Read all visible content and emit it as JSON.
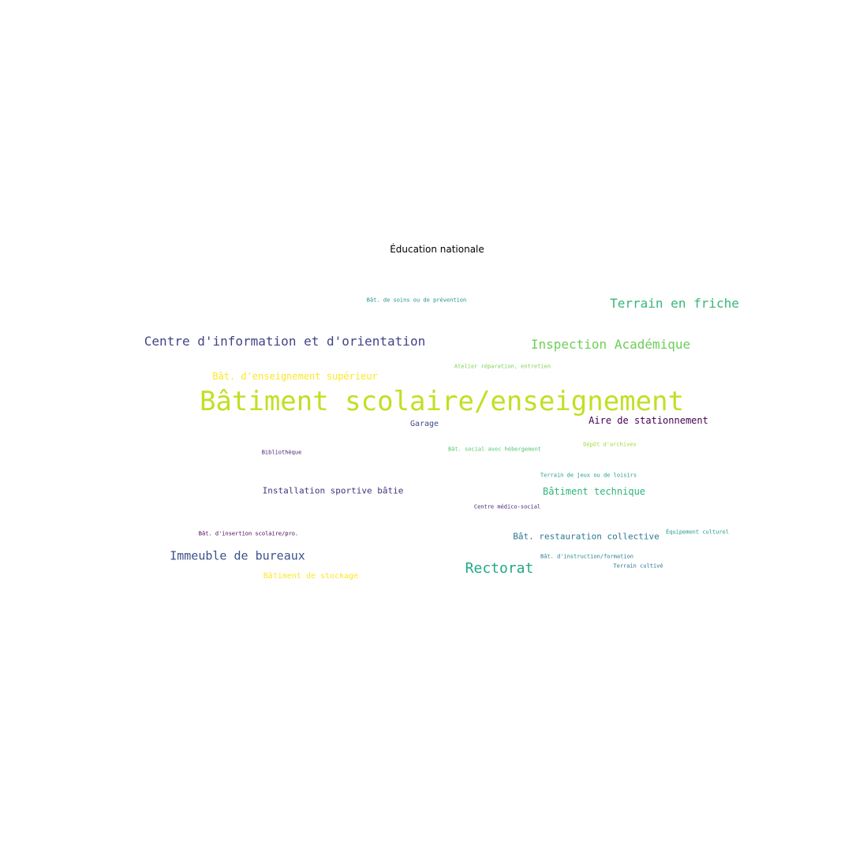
{
  "chart_data": {
    "type": "wordcloud",
    "title": "Éducation nationale",
    "words": [
      {
        "text": "Bâtiment scolaire/enseignement",
        "color": "#c2df23"
      },
      {
        "text": "Centre d'information et d'orientation",
        "color": "#414487"
      },
      {
        "text": "Terrain en friche",
        "color": "#35b779"
      },
      {
        "text": "Inspection Académique",
        "color": "#6ece58"
      },
      {
        "text": "Bât. d'enseignement supérieur",
        "color": "#fde725"
      },
      {
        "text": "Immeuble de bureaux",
        "color": "#3b528b"
      },
      {
        "text": "Rectorat",
        "color": "#22a884"
      },
      {
        "text": "Aire de stationnement",
        "color": "#440154"
      },
      {
        "text": "Bâtiment technique",
        "color": "#2fb47c"
      },
      {
        "text": "Installation sportive bâtie",
        "color": "#46327e"
      },
      {
        "text": "Bât. restauration collective",
        "color": "#2a788e"
      },
      {
        "text": "Bâtiment de stockage",
        "color": "#fde725"
      },
      {
        "text": "Garage",
        "color": "#3e4989"
      },
      {
        "text": "Bât. de soins ou de prévention",
        "color": "#21918c"
      },
      {
        "text": "Atelier réparation, entretien",
        "color": "#7ad151"
      },
      {
        "text": "Bât. social avec hébergement",
        "color": "#52c569"
      },
      {
        "text": "Dépôt d'archives",
        "color": "#a0da39"
      },
      {
        "text": "Bibliothèque",
        "color": "#481a6c"
      },
      {
        "text": "Terrain de jeux ou de loisirs",
        "color": "#1f9e89"
      },
      {
        "text": "Centre médico-social",
        "color": "#482475"
      },
      {
        "text": "Bât. d'insertion scolaire/pro.",
        "color": "#440154"
      },
      {
        "text": "Équipement culturel",
        "color": "#1f9a8a"
      },
      {
        "text": "Bât. d'instruction/formation",
        "color": "#277f8e"
      },
      {
        "text": "Terrain cultivé",
        "color": "#2c728e"
      }
    ]
  }
}
